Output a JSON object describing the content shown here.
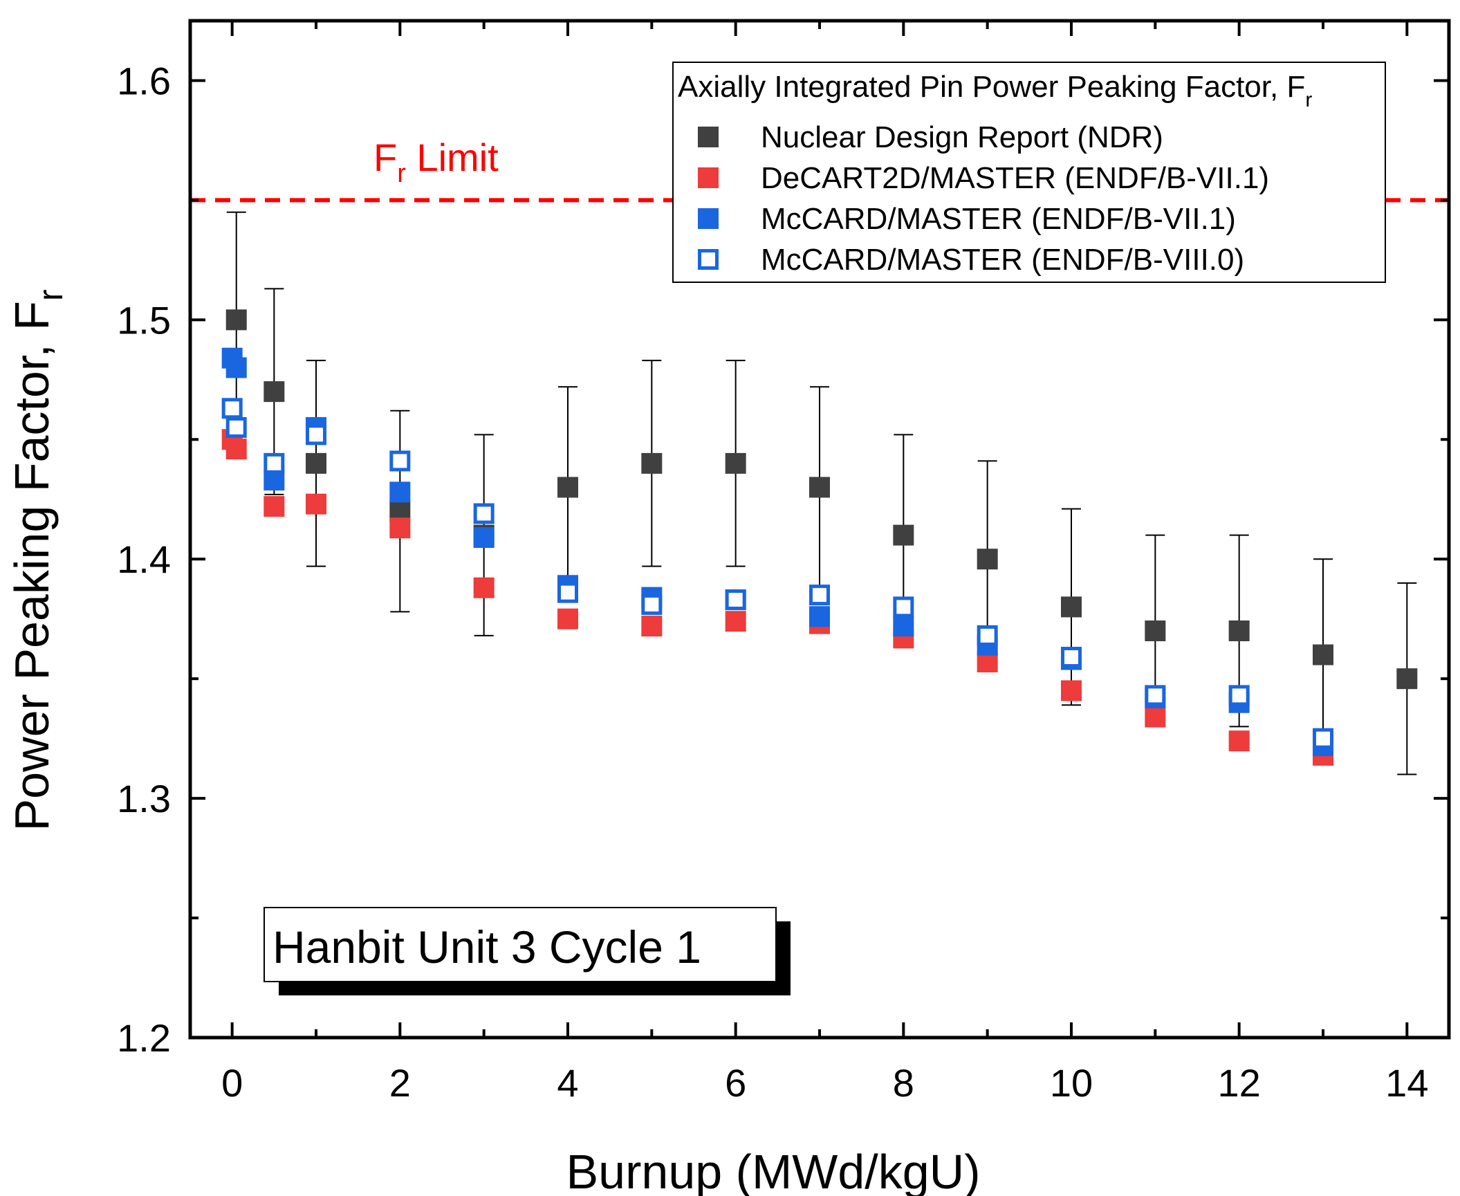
{
  "chart_data": {
    "type": "scatter",
    "xlabel": "Burnup (MWd/kgU)",
    "ylabel": {
      "main": "Power Peaking Factor, F",
      "sub": "r"
    },
    "xlim": [
      -0.5,
      14.5
    ],
    "ylim": [
      1.2,
      1.625
    ],
    "x_ticks": [
      0,
      2,
      4,
      6,
      8,
      10,
      12,
      14
    ],
    "x_tick_labels": [
      "0",
      "2",
      "4",
      "6",
      "8",
      "10",
      "12",
      "14"
    ],
    "y_ticks": [
      1.2,
      1.3,
      1.4,
      1.5,
      1.6
    ],
    "y_tick_labels": [
      "1.2",
      "1.3",
      "1.4",
      "1.5",
      "1.6"
    ],
    "limit_line": {
      "y": 1.55,
      "label_main": "F",
      "label_sub": "r",
      "label_rest": " Limit",
      "color": "#ff0000"
    },
    "legend": {
      "title_main": "Axially Integrated Pin Power Peaking Factor, F",
      "title_sub": "r",
      "position": "top-right"
    },
    "annotation": "Hanbit Unit 3 Cycle 1",
    "series": [
      {
        "name": "Nuclear Design Report (NDR)",
        "style": "filled",
        "color": "#404040",
        "x": [
          0.05,
          0.5,
          1.0,
          2.0,
          3.0,
          4.0,
          5.0,
          6.0,
          7.0,
          8.0,
          9.0,
          10.0,
          11.0,
          12.0,
          13.0,
          14.0
        ],
        "y": [
          1.5,
          1.47,
          1.44,
          1.42,
          1.41,
          1.43,
          1.44,
          1.44,
          1.43,
          1.41,
          1.4,
          1.38,
          1.37,
          1.37,
          1.36,
          1.35
        ],
        "err_plus": [
          0.045,
          0.043,
          0.043,
          0.042,
          0.042,
          0.042,
          0.043,
          0.043,
          0.042,
          0.042,
          0.041,
          0.041,
          0.04,
          0.04,
          0.04,
          0.04
        ],
        "err_minus": [
          0.045,
          0.043,
          0.043,
          0.042,
          0.042,
          0.042,
          0.043,
          0.043,
          0.042,
          0.042,
          0.041,
          0.041,
          0.04,
          0.04,
          0.04,
          0.04
        ]
      },
      {
        "name": "DeCART2D/MASTER (ENDF/B-VII.1)",
        "style": "filled",
        "color": "#ee3b3b",
        "x": [
          0.0,
          0.05,
          0.5,
          1.0,
          2.0,
          3.0,
          4.0,
          5.0,
          6.0,
          7.0,
          8.0,
          9.0,
          10.0,
          11.0,
          12.0,
          13.0
        ],
        "y": [
          1.45,
          1.446,
          1.422,
          1.423,
          1.413,
          1.388,
          1.375,
          1.372,
          1.374,
          1.373,
          1.367,
          1.357,
          1.345,
          1.334,
          1.324,
          1.318
        ]
      },
      {
        "name": "McCARD/MASTER (ENDF/B-VII.1)",
        "style": "filled",
        "color": "#1a66e0",
        "x": [
          0.0,
          0.05,
          0.5,
          1.0,
          2.0,
          3.0,
          4.0,
          5.0,
          6.0,
          7.0,
          8.0,
          9.0,
          10.0,
          11.0,
          12.0,
          13.0
        ],
        "y": [
          1.484,
          1.48,
          1.433,
          1.455,
          1.428,
          1.409,
          1.389,
          1.384,
          1.383,
          1.376,
          1.372,
          1.364,
          1.358,
          1.342,
          1.34,
          1.322
        ]
      },
      {
        "name": "McCARD/MASTER (ENDF/B-VIII.0)",
        "style": "open",
        "color": "#1a66e0",
        "x": [
          0.0,
          0.05,
          0.5,
          1.0,
          2.0,
          3.0,
          4.0,
          5.0,
          6.0,
          7.0,
          8.0,
          9.0,
          10.0,
          11.0,
          12.0,
          13.0
        ],
        "y": [
          1.463,
          1.455,
          1.44,
          1.452,
          1.441,
          1.419,
          1.386,
          1.381,
          1.383,
          1.385,
          1.38,
          1.368,
          1.359,
          1.343,
          1.343,
          1.325
        ]
      }
    ]
  }
}
